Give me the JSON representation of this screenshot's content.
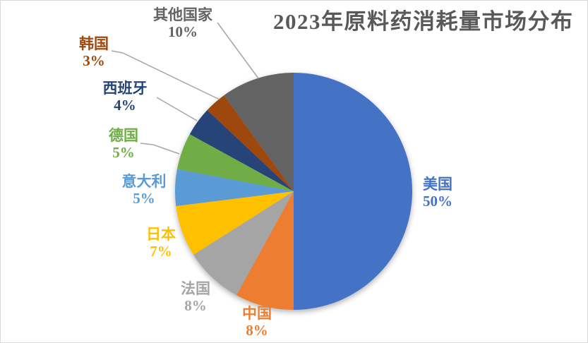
{
  "colors": {
    "title": "#595959",
    "border": "#d9d9d9",
    "leader_line": "#a6a6a6",
    "background": "#ffffff"
  },
  "chart_data": {
    "type": "pie",
    "title": "2023年原料药消耗量市场分布",
    "start_angle_deg": 0,
    "direction": "clockwise",
    "legend_position": "none",
    "total": 100,
    "slices": [
      {
        "label": "美国",
        "value": 50,
        "pct_label": "50%",
        "color": "#4472c4"
      },
      {
        "label": "中国",
        "value": 8,
        "pct_label": "8%",
        "color": "#ed7d31"
      },
      {
        "label": "法国",
        "value": 8,
        "pct_label": "8%",
        "color": "#a5a5a5"
      },
      {
        "label": "日本",
        "value": 7,
        "pct_label": "7%",
        "color": "#ffc000"
      },
      {
        "label": "意大利",
        "value": 5,
        "pct_label": "5%",
        "color": "#5b9bd5"
      },
      {
        "label": "德国",
        "value": 5,
        "pct_label": "5%",
        "color": "#70ad47"
      },
      {
        "label": "西班牙",
        "value": 4,
        "pct_label": "4%",
        "color": "#264478"
      },
      {
        "label": "韩国",
        "value": 3,
        "pct_label": "3%",
        "color": "#9e480e"
      },
      {
        "label": "其他国家",
        "value": 10,
        "pct_label": "10%",
        "color": "#636363"
      }
    ]
  }
}
